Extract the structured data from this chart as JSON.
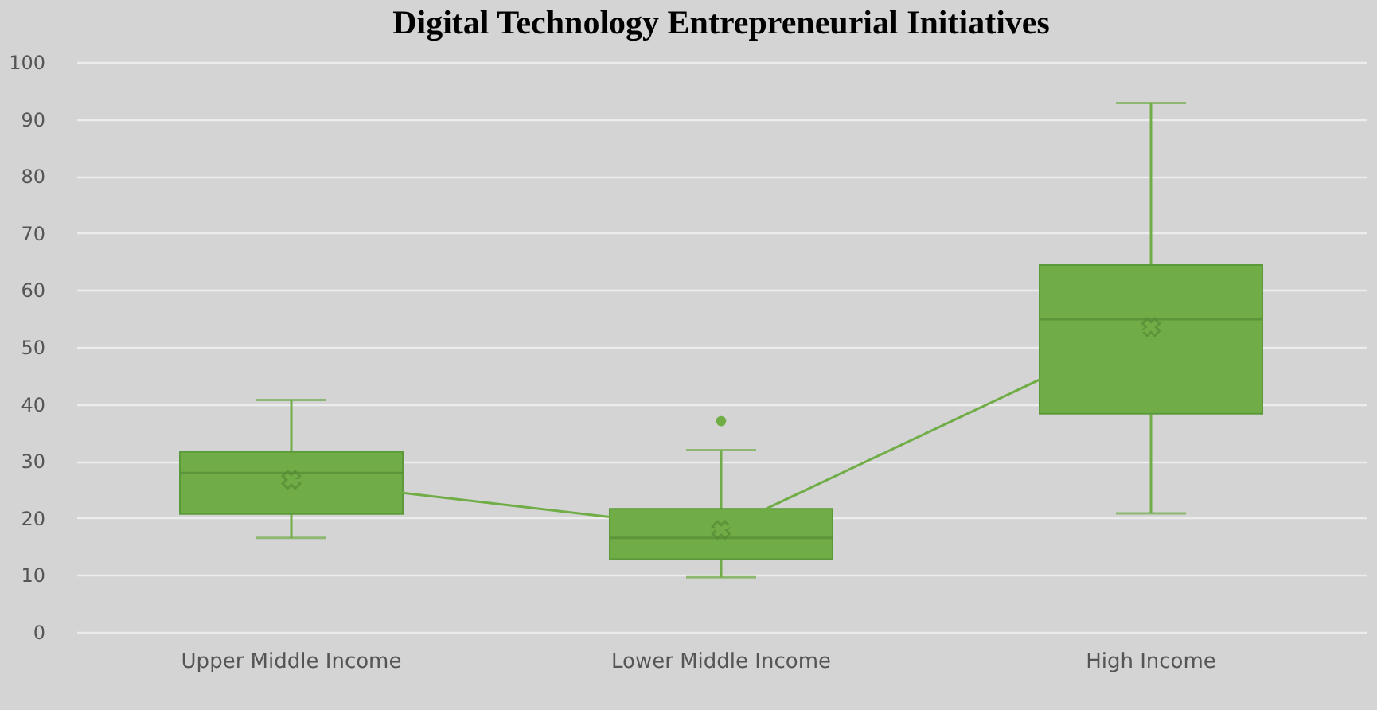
{
  "chart_data": {
    "type": "box",
    "title": "Digital Technology Entrepreneurial Initiatives",
    "categories": [
      "Upper Middle Income",
      "Lower Middle Income",
      "High Income"
    ],
    "ylim": [
      0,
      100
    ],
    "yticks": [
      0,
      10,
      20,
      30,
      40,
      50,
      60,
      70,
      80,
      90,
      100
    ],
    "grid": "y",
    "color": "#70ad47",
    "boxes": [
      {
        "low": 16.5,
        "q1": 20.7,
        "median": 27.9,
        "q3": 31.6,
        "high": 40.7,
        "mean": 26.7
      },
      {
        "low": 9.6,
        "q1": 12.8,
        "median": 16.5,
        "q3": 21.6,
        "high": 31.9,
        "mean": 17.9,
        "outliers": [
          37
        ]
      },
      {
        "low": 20.8,
        "q1": 38.3,
        "median": 54.9,
        "q3": 64.4,
        "high": 92.8,
        "mean": 53.5
      }
    ],
    "series": [
      {
        "type": "line",
        "color": "#70ad47",
        "marker": "none",
        "values": [
          26.7,
          17.9,
          53.5
        ]
      }
    ]
  }
}
